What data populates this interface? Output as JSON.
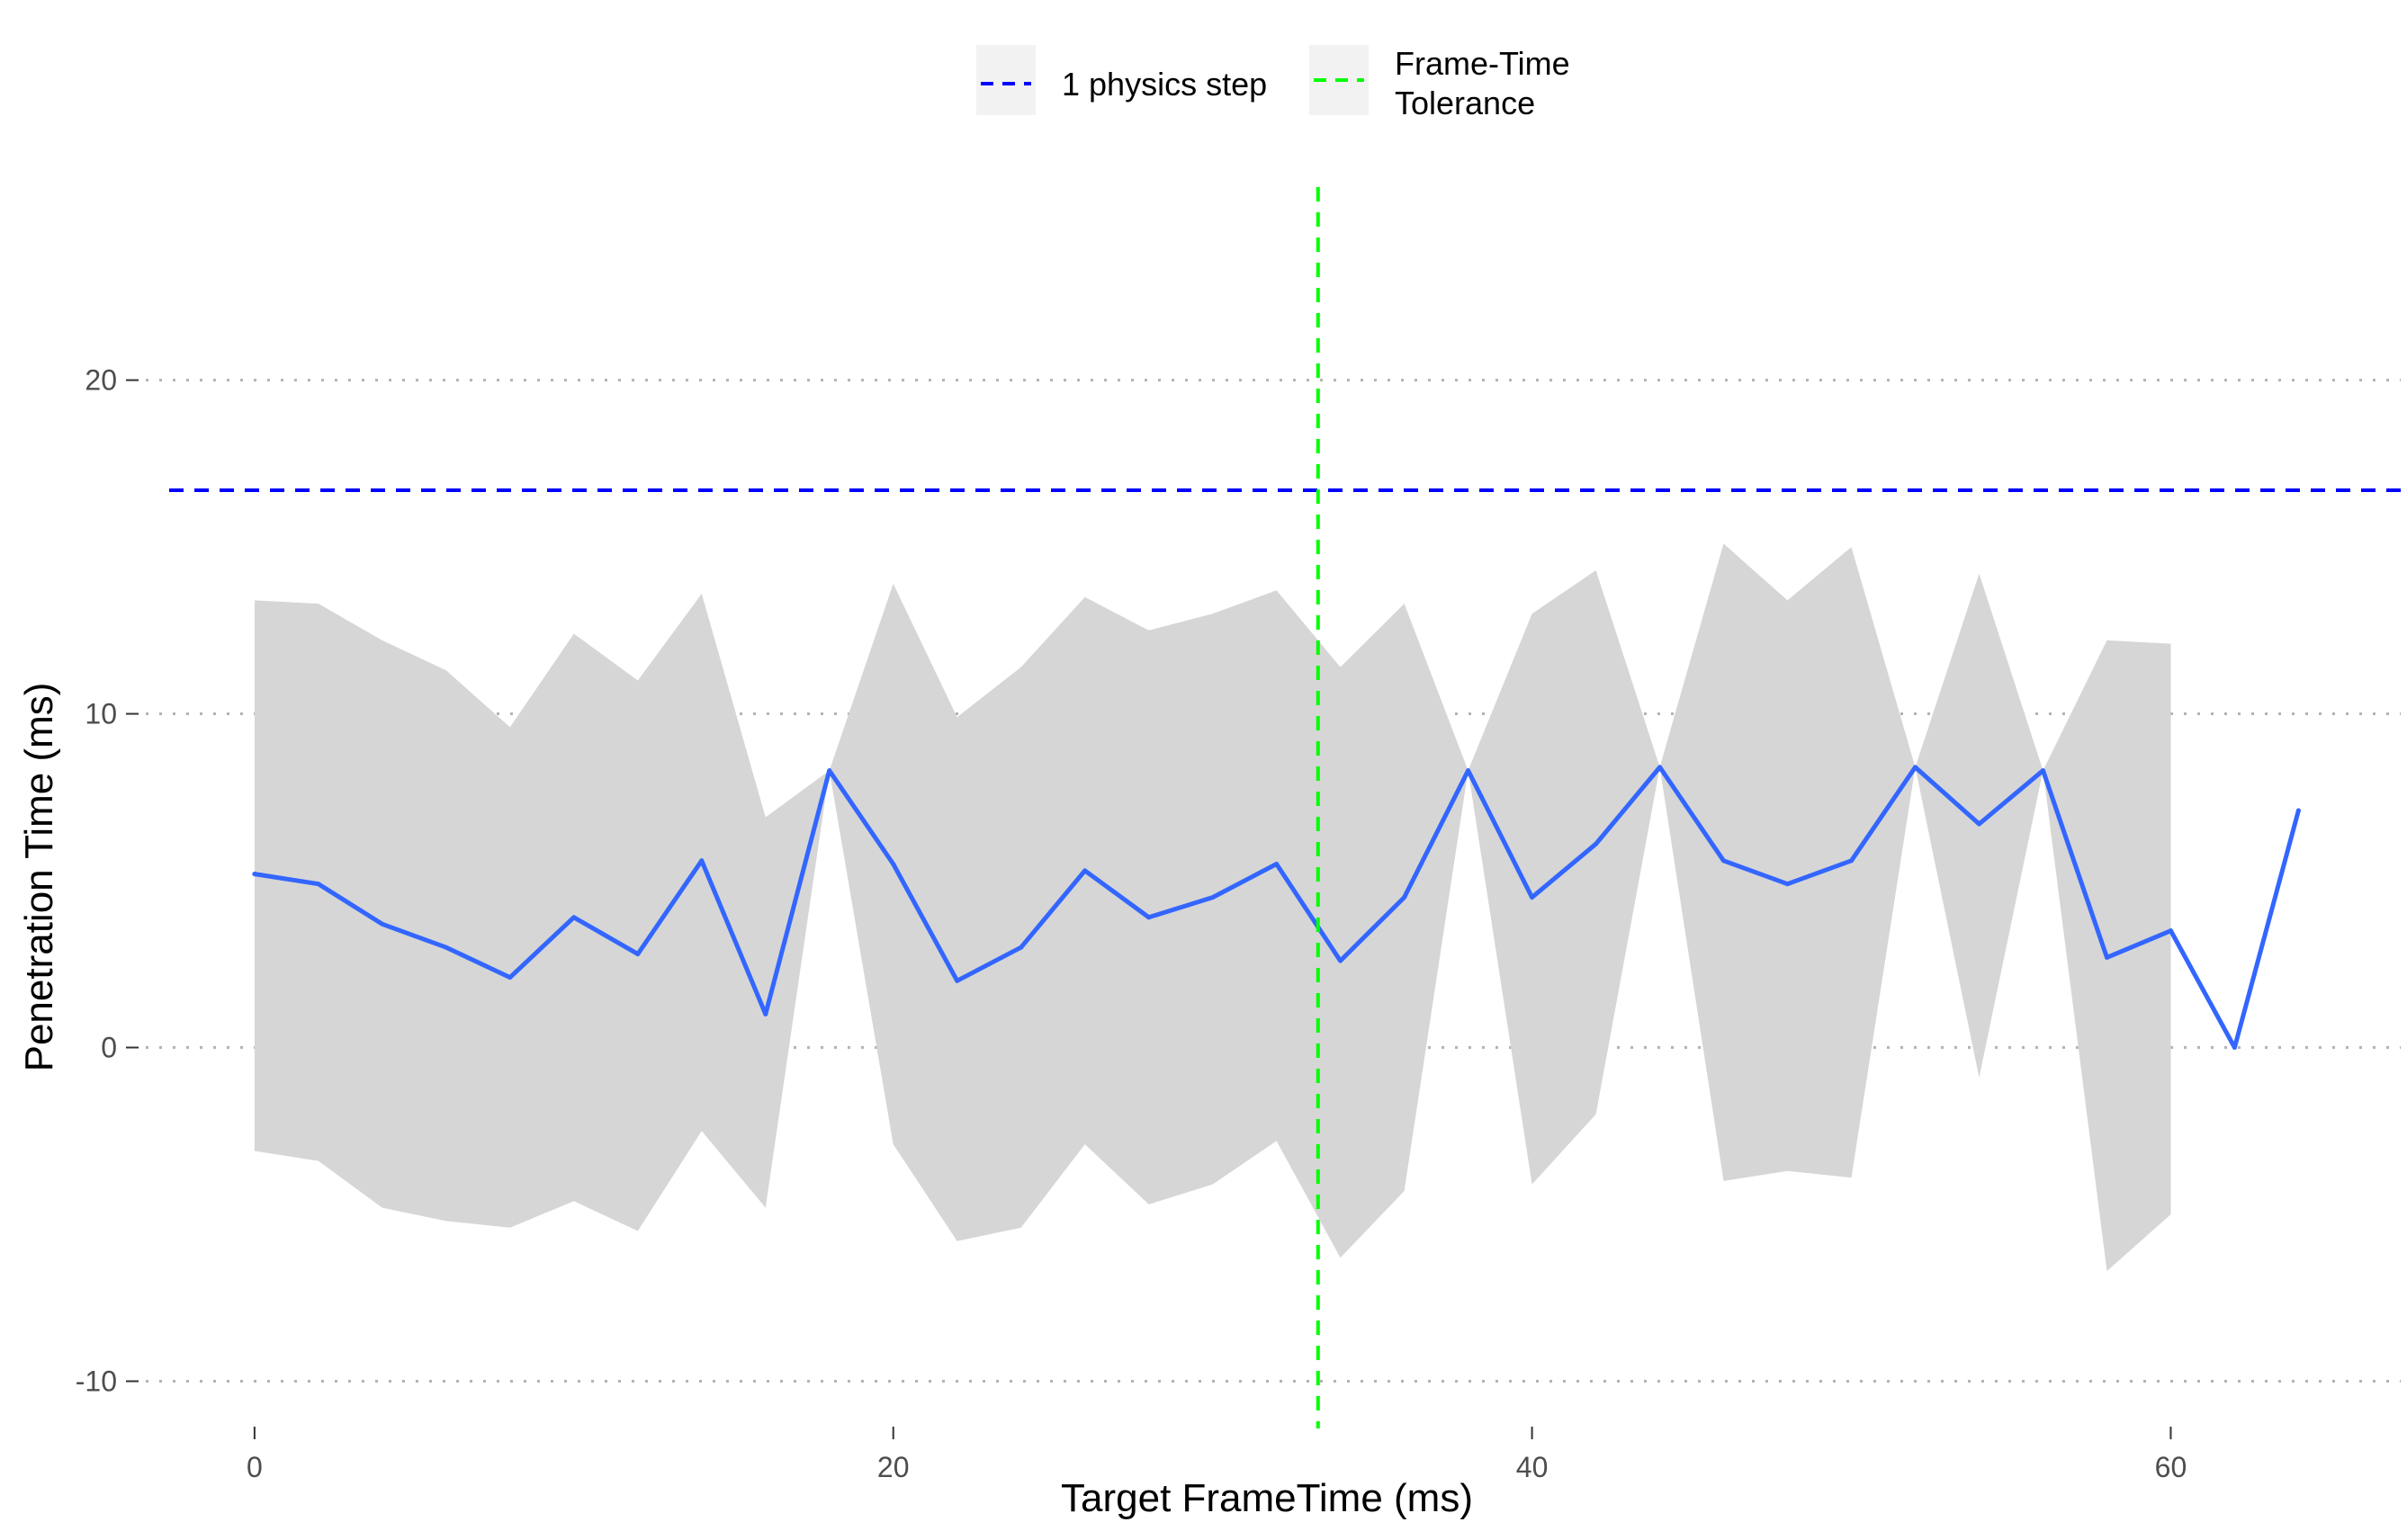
{
  "chart_data": {
    "type": "line",
    "title": "",
    "xlabel": "Target FrameTime (ms)",
    "ylabel": "Penetration Time (ms)",
    "xlim": [
      -3.8,
      67.2
    ],
    "ylim": [
      -11.2,
      26.0
    ],
    "x_ticks": [
      0,
      20,
      40,
      60
    ],
    "y_ticks": [
      -10,
      0,
      10,
      20
    ],
    "x_tick_labels": [
      "0",
      "20",
      "40",
      "60"
    ],
    "y_tick_labels": [
      "-10",
      "0",
      "10",
      "20"
    ],
    "grid": "horizontal dotted major lines",
    "legend_position": "top",
    "series": [
      {
        "name": "",
        "color": "#3366ff",
        "x": [
          0,
          2,
          4,
          6,
          8,
          10,
          12,
          14,
          16,
          18,
          20,
          22,
          24,
          26,
          28,
          30,
          32,
          34,
          36,
          38,
          40,
          42,
          44,
          46,
          48,
          50,
          52,
          54,
          56,
          58,
          60,
          62,
          64
        ],
        "y": [
          5.2,
          4.9,
          3.7,
          3.0,
          2.1,
          3.9,
          2.8,
          5.6,
          1.0,
          8.3,
          5.5,
          2.0,
          3.0,
          5.3,
          3.9,
          4.5,
          5.5,
          2.6,
          4.5,
          8.3,
          4.5,
          6.1,
          8.4,
          5.6,
          4.9,
          5.6,
          8.4,
          6.7,
          8.3,
          2.7,
          3.5,
          0.0,
          7.1
        ]
      }
    ],
    "ribbon": {
      "color": "#d6d6d6",
      "x": [
        0,
        2,
        4,
        6,
        8,
        10,
        12,
        14,
        16,
        18,
        20,
        22,
        24,
        26,
        28,
        30,
        32,
        34,
        36,
        38,
        40,
        42,
        44,
        46,
        48,
        50,
        52,
        54,
        56,
        58,
        60
      ],
      "upper": [
        13.4,
        13.3,
        12.2,
        11.3,
        9.6,
        12.4,
        11.0,
        13.6,
        6.9,
        8.3,
        13.9,
        9.9,
        11.4,
        13.5,
        12.5,
        13.0,
        13.7,
        11.4,
        13.3,
        8.3,
        13.0,
        14.3,
        8.4,
        15.1,
        13.4,
        15.0,
        8.4,
        14.2,
        8.3,
        12.2,
        12.1
      ],
      "lower": [
        -3.1,
        -3.4,
        -4.8,
        -5.2,
        -5.4,
        -4.6,
        -5.5,
        -2.5,
        -4.8,
        8.3,
        -2.9,
        -5.8,
        -5.4,
        -2.9,
        -4.7,
        -4.1,
        -2.8,
        -6.3,
        -4.3,
        8.3,
        -4.1,
        -2.0,
        8.4,
        -4.0,
        -3.7,
        -3.9,
        8.4,
        -0.9,
        8.3,
        -6.7,
        -5.0
      ]
    },
    "reference_lines": [
      {
        "name": "1 physics step",
        "orientation": "horizontal",
        "value": 16.7,
        "color": "#0000ff",
        "style": "dashed"
      },
      {
        "name": "Frame-Time Tolerance",
        "orientation": "vertical",
        "value": 33.3,
        "color": "#00ff00",
        "style": "dashed"
      }
    ],
    "legend": {
      "entries": [
        {
          "label_lines": [
            "1 physics step"
          ],
          "color": "#0000ff"
        },
        {
          "label_lines": [
            "Frame-Time",
            "Tolerance"
          ],
          "color": "#00ff00"
        }
      ]
    }
  }
}
